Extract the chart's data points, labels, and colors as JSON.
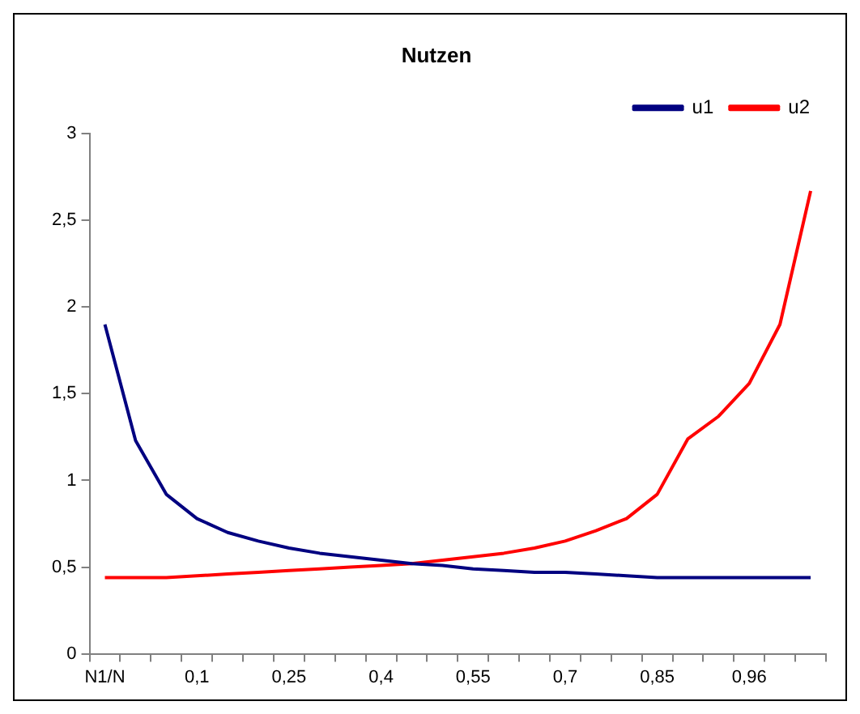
{
  "chart_data": {
    "type": "line",
    "title": "Nutzen",
    "categories": [
      "N1/N",
      null,
      null,
      "0,1",
      null,
      null,
      "0,25",
      null,
      null,
      "0,4",
      null,
      null,
      "0,55",
      null,
      null,
      "0,7",
      null,
      null,
      "0,85",
      null,
      null,
      "0,96",
      null,
      null
    ],
    "series": [
      {
        "name": "u1",
        "color": "#000080",
        "values": [
          1.9,
          1.23,
          0.92,
          0.78,
          0.7,
          0.65,
          0.61,
          0.58,
          0.56,
          0.54,
          0.52,
          0.51,
          0.49,
          0.48,
          0.47,
          0.47,
          0.46,
          0.45,
          0.44,
          0.44,
          0.44,
          0.44,
          0.44,
          0.44
        ]
      },
      {
        "name": "u2",
        "color": "#ff0000",
        "values": [
          0.44,
          0.44,
          0.44,
          0.45,
          0.46,
          0.47,
          0.48,
          0.49,
          0.5,
          0.51,
          0.52,
          0.54,
          0.56,
          0.58,
          0.61,
          0.65,
          0.71,
          0.78,
          0.92,
          1.24,
          1.37,
          1.56,
          1.9,
          2.67
        ]
      }
    ],
    "ylim": [
      0,
      3
    ],
    "yticks": [
      0,
      {
        "value": 0.5,
        "label": "0,5"
      },
      1,
      {
        "value": 1.5,
        "label": "1,5"
      },
      2,
      {
        "value": 2.5,
        "label": "2,5"
      },
      3
    ],
    "legend": "top right",
    "marker": "none",
    "line_style": "solid"
  }
}
